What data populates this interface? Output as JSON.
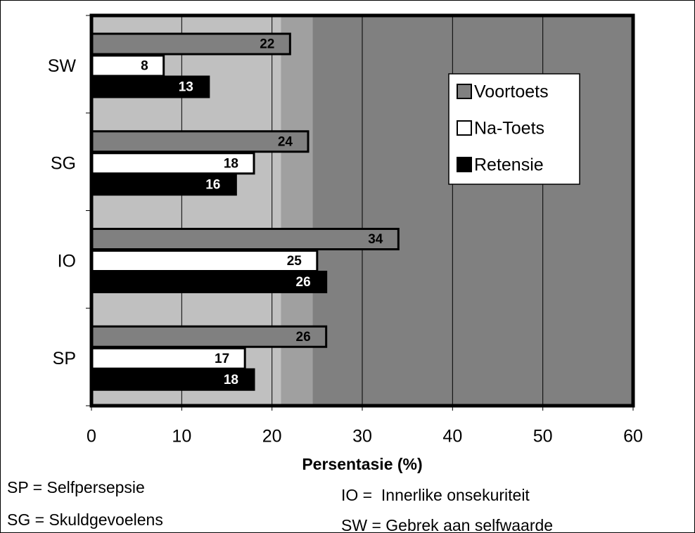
{
  "chart_data": {
    "type": "bar",
    "orientation": "horizontal",
    "categories": [
      "SW",
      "SG",
      "IO",
      "SP"
    ],
    "series": [
      {
        "name": "Voortoets",
        "color": "#808080",
        "values": [
          22,
          24,
          34,
          26
        ]
      },
      {
        "name": "Na-Toets",
        "color": "#ffffff",
        "values": [
          8,
          18,
          25,
          17
        ]
      },
      {
        "name": "Retensie",
        "color": "#000000",
        "values": [
          13,
          16,
          26,
          18
        ]
      }
    ],
    "xlim": [
      0,
      60
    ],
    "xticks": [
      0,
      10,
      20,
      30,
      40,
      50,
      60
    ],
    "grid": true,
    "xlabel": "Persentasie (%)",
    "background_bands": [
      {
        "from": 0,
        "to": 21,
        "color": "#c0c0c0"
      },
      {
        "from": 21,
        "to": 24.5,
        "color": "#a0a0a0"
      },
      {
        "from": 24.5,
        "to": 60,
        "color": "#808080"
      }
    ],
    "legend": "upper right",
    "notes": [
      "SP = Selfpersepsie",
      "SG = Skuldgevoelens",
      "IO =  Innerlike onsekuriteit",
      "SW = Gebrek aan selfwaarde"
    ]
  }
}
